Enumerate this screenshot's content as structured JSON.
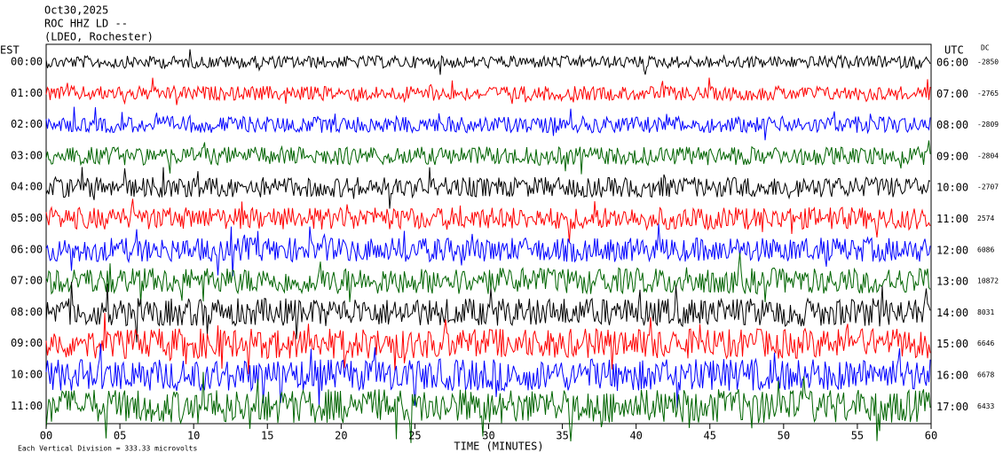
{
  "header": {
    "date": "Oct30,2025",
    "station": "ROC HHZ LD --",
    "network": "(LDEO, Rochester)"
  },
  "left_zone": "EST",
  "right_zone": "UTC",
  "dc_header": "DC",
  "rows": [
    {
      "left": "00:00",
      "right": "06:00",
      "dc": -2850,
      "color": "#000000"
    },
    {
      "left": "01:00",
      "right": "07:00",
      "dc": -2765,
      "color": "#ff0000"
    },
    {
      "left": "02:00",
      "right": "08:00",
      "dc": -2809,
      "color": "#0000ff"
    },
    {
      "left": "03:00",
      "right": "09:00",
      "dc": -2804,
      "color": "#006400"
    },
    {
      "left": "04:00",
      "right": "10:00",
      "dc": -2707,
      "color": "#000000"
    },
    {
      "left": "05:00",
      "right": "11:00",
      "dc": 2574,
      "color": "#ff0000"
    },
    {
      "left": "06:00",
      "right": "12:00",
      "dc": 6086,
      "color": "#0000ff"
    },
    {
      "left": "07:00",
      "right": "13:00",
      "dc": 10872,
      "color": "#006400"
    },
    {
      "left": "08:00",
      "right": "14:00",
      "dc": 8031,
      "color": "#000000"
    },
    {
      "left": "09:00",
      "right": "15:00",
      "dc": 6646,
      "color": "#ff0000"
    },
    {
      "left": "10:00",
      "right": "16:00",
      "dc": 6678,
      "color": "#0000ff"
    },
    {
      "left": "11:00",
      "right": "17:00",
      "dc": 6433,
      "color": "#006400"
    }
  ],
  "xlim": [
    0,
    60
  ],
  "xticks": [
    {
      "value": 0,
      "label": "00"
    },
    {
      "value": 5,
      "label": "05"
    },
    10,
    15,
    20,
    25,
    30,
    35,
    40,
    45,
    50,
    55,
    60
  ],
  "xlabel": "TIME (MINUTES)",
  "footer": "Each Vertical Division =  333.33 microvolts"
}
